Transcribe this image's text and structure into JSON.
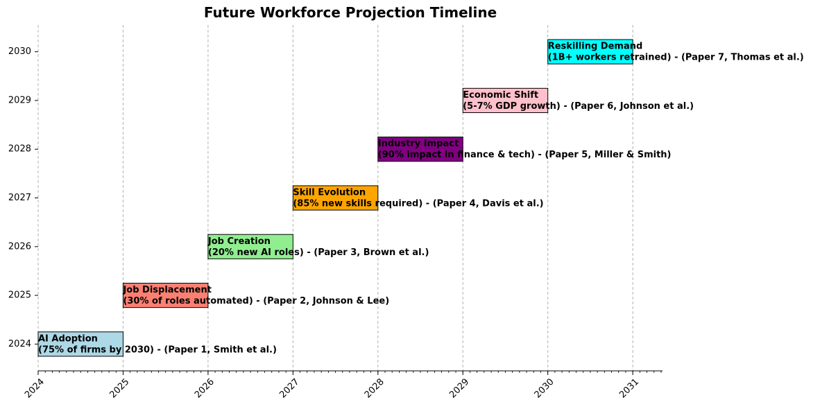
{
  "chart_data": {
    "type": "bar",
    "orientation": "horizontal-timeline",
    "title": "Future Workforce Projection Timeline",
    "xlabel": "",
    "ylabel": "",
    "xlim": [
      2024,
      2031.35
    ],
    "ylim": [
      2023.45,
      2030.55
    ],
    "x_ticks": [
      "2024",
      "2025",
      "2026",
      "2027",
      "2028",
      "2029",
      "2030",
      "2031"
    ],
    "y_ticks": [
      "2024",
      "2025",
      "2026",
      "2027",
      "2028",
      "2029",
      "2030"
    ],
    "grid": "x-dashed",
    "series": [
      {
        "year": 2024,
        "start": 2024,
        "end": 2025,
        "line1": "AI Adoption",
        "line2": "(75% of firms by 2030) - (Paper 1, Smith et al.)",
        "color": "#add8e6"
      },
      {
        "year": 2025,
        "start": 2025,
        "end": 2026,
        "line1": "Job Displacement",
        "line2": "(30% of roles automated) - (Paper 2, Johnson & Lee)",
        "color": "#fa8072"
      },
      {
        "year": 2026,
        "start": 2026,
        "end": 2027,
        "line1": "Job Creation",
        "line2": "(20% new AI roles) - (Paper 3, Brown et al.)",
        "color": "#90ee90"
      },
      {
        "year": 2027,
        "start": 2027,
        "end": 2028,
        "line1": "Skill Evolution",
        "line2": "(85% new skills required) - (Paper 4, Davis et al.)",
        "color": "#ffa500"
      },
      {
        "year": 2028,
        "start": 2028,
        "end": 2029,
        "line1": "Industry Impact",
        "line2": "(90% impact in finance & tech) - (Paper 5, Miller & Smith)",
        "color": "#800080"
      },
      {
        "year": 2029,
        "start": 2029,
        "end": 2030,
        "line1": "Economic Shift",
        "line2": "(5-7% GDP growth) - (Paper 6, Johnson et al.)",
        "color": "#ffc0cb"
      },
      {
        "year": 2030,
        "start": 2030,
        "end": 2031,
        "line1": "Reskilling Demand",
        "line2": "(1B+ workers retrained) - (Paper 7, Thomas et al.)",
        "color": "#00ffff"
      }
    ]
  }
}
